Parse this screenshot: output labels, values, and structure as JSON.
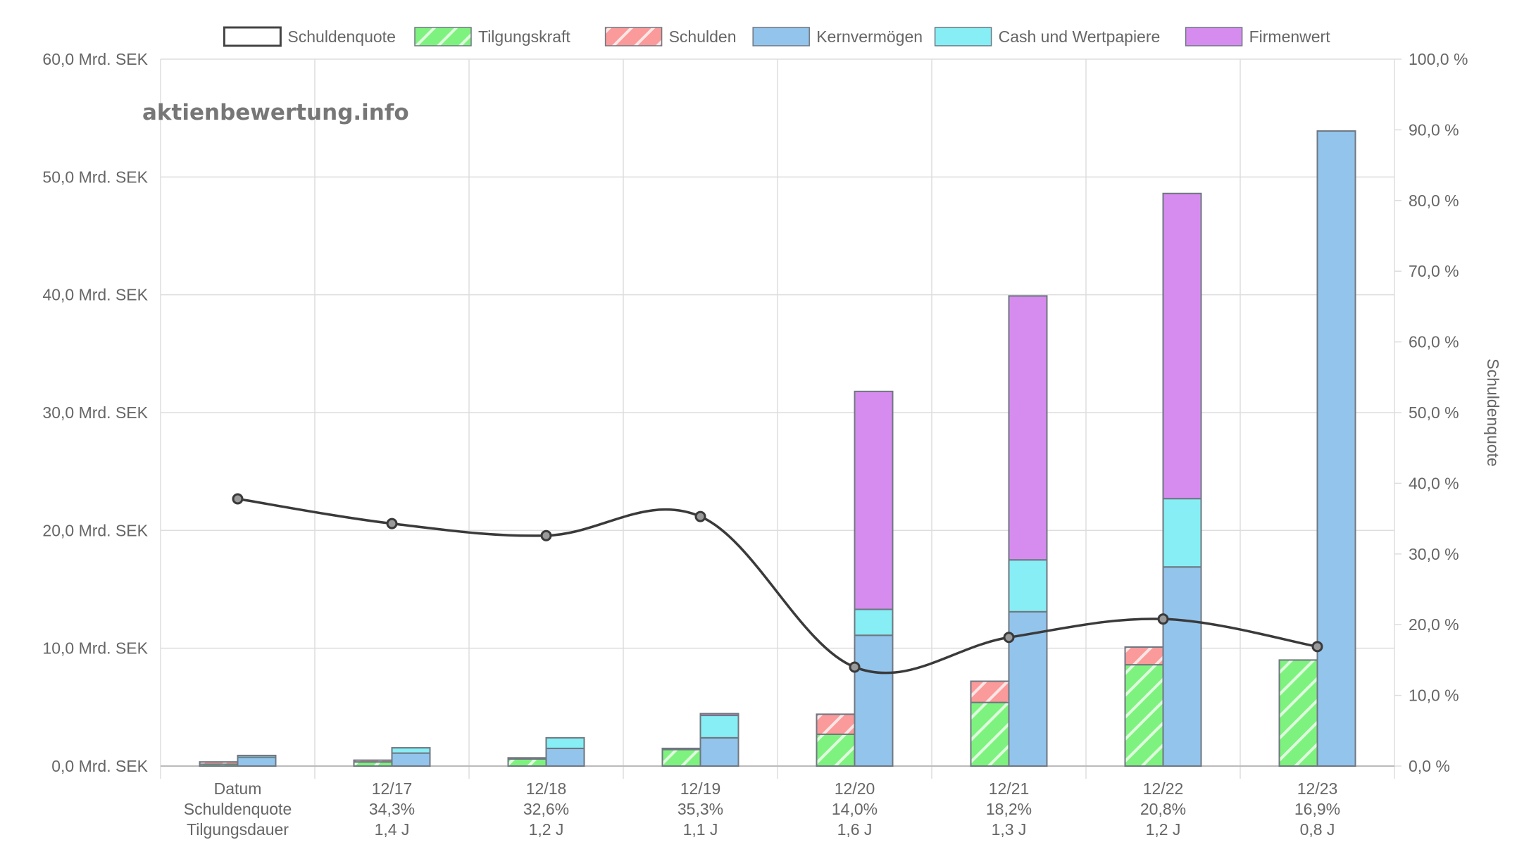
{
  "watermark": "aktienbewertung.info",
  "colors": {
    "line": "#3a3a3a",
    "tilgungskraft": "#7ef27e",
    "schulden": "#fb9a9a",
    "kernvermoegen": "#93c4ec",
    "cash": "#86eef4",
    "firmenwert": "#d68cef",
    "bar_border": "#6f7780",
    "grid": "#dddddd"
  },
  "chart_data": {
    "type": "bar",
    "title": "",
    "categories": [
      "Datum",
      "12/17",
      "12/18",
      "12/19",
      "12/20",
      "12/21",
      "12/22",
      "12/23"
    ],
    "category_labels": [
      [
        "Datum",
        "Schuldenquote",
        "Tilgungsdauer"
      ],
      [
        "12/17",
        "34,3%",
        "1,4 J"
      ],
      [
        "12/18",
        "32,6%",
        "1,2 J"
      ],
      [
        "12/19",
        "35,3%",
        "1,1 J"
      ],
      [
        "12/20",
        "14,0%",
        "1,6 J"
      ],
      [
        "12/21",
        "18,2%",
        "1,3 J"
      ],
      [
        "12/22",
        "20,8%",
        "1,2 J"
      ],
      [
        "12/23",
        "16,9%",
        "0,8 J"
      ]
    ],
    "legend": [
      "Schuldenquote",
      "Tilgungskraft",
      "Schulden",
      "Kernvermögen",
      "Cash und Wertpapiere",
      "Firmenwert"
    ],
    "legend_position": "top",
    "y_left": {
      "min": 0,
      "max": 60,
      "step": 10,
      "tick_labels": [
        "0,0 Mrd. SEK",
        "10,0 Mrd. SEK",
        "20,0 Mrd. SEK",
        "30,0 Mrd. SEK",
        "40,0 Mrd. SEK",
        "50,0 Mrd. SEK",
        "60,0 Mrd. SEK"
      ]
    },
    "y_right": {
      "min": 0,
      "max": 100,
      "step": 10,
      "label": "Schuldenquote",
      "tick_labels": [
        "0,0 %",
        "10,0 %",
        "20,0 %",
        "30,0 %",
        "40,0 %",
        "50,0 %",
        "60,0 %",
        "70,0 %",
        "80,0 %",
        "90,0 %",
        "100,0 %"
      ]
    },
    "grid": true,
    "debt_stack": {
      "tilgungskraft": [
        0.15,
        0.35,
        0.6,
        1.4,
        2.7,
        5.4,
        8.6,
        9.0
      ],
      "schulden": [
        0.2,
        0.15,
        0.1,
        0.1,
        1.7,
        1.8,
        1.5,
        0.0
      ]
    },
    "asset_stack": {
      "kernvermoegen": [
        0.75,
        1.1,
        1.5,
        2.4,
        11.1,
        13.1,
        16.9,
        53.9
      ],
      "cash": [
        0.15,
        0.45,
        0.9,
        1.9,
        2.2,
        4.4,
        5.8,
        0.0
      ],
      "firmenwert": [
        0.0,
        0.0,
        0.0,
        0.15,
        18.5,
        22.4,
        25.9,
        0.0
      ]
    },
    "schuldenquote": [
      37.8,
      34.3,
      32.6,
      35.3,
      14.0,
      18.2,
      20.8,
      16.9
    ]
  }
}
